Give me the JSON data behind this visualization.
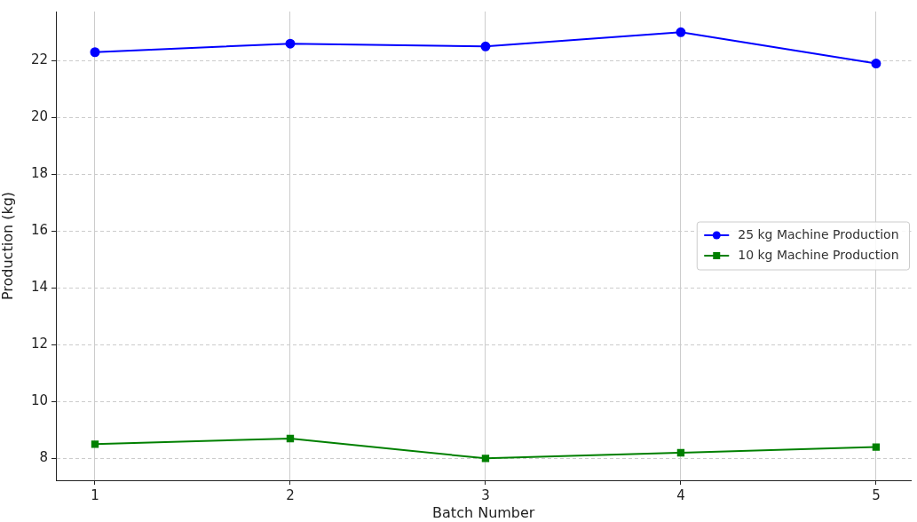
{
  "chart_data": {
    "type": "line",
    "xlabel": "Batch Number",
    "ylabel": "Production (kg)",
    "x": [
      1,
      2,
      3,
      4,
      5
    ],
    "series": [
      {
        "name": "25 kg Machine Production",
        "color": "#0000ff",
        "marker": "circle",
        "values": [
          22.3,
          22.6,
          22.5,
          23.0,
          21.9
        ]
      },
      {
        "name": "10 kg Machine Production",
        "color": "#008000",
        "marker": "square",
        "values": [
          8.5,
          8.7,
          8.0,
          8.2,
          8.4
        ]
      }
    ],
    "xlim": [
      0.8,
      5.18
    ],
    "xticks": [
      1,
      2,
      3,
      4,
      5
    ],
    "ylim": [
      7.23,
      23.73
    ],
    "yticks": [
      8,
      10,
      12,
      14,
      16,
      18,
      20,
      22
    ],
    "grid": true,
    "legend": "right",
    "line_style": "solid"
  }
}
